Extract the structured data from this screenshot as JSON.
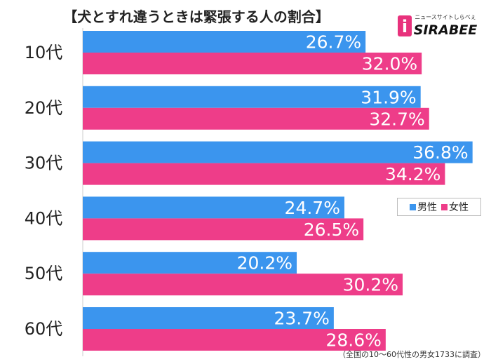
{
  "title": "【犬とすれ違うときは緊張する人の割合】",
  "logo": {
    "text": "SIRABEE",
    "tagline": "ニュースサイトしらべぇ"
  },
  "footnote": "（全国の10～60代性の男女1733に調査）",
  "chart_data": {
    "type": "bar",
    "orientation": "horizontal",
    "categories": [
      "10代",
      "20代",
      "30代",
      "40代",
      "50代",
      "60代"
    ],
    "series": [
      {
        "name": "男性",
        "color": "#3b95ee",
        "values": [
          26.7,
          31.9,
          36.8,
          24.7,
          20.2,
          23.7
        ]
      },
      {
        "name": "女性",
        "color": "#ee3d89",
        "values": [
          32.0,
          32.7,
          34.2,
          26.5,
          30.2,
          28.6
        ]
      }
    ],
    "value_suffix": "%",
    "xlim": [
      0,
      40
    ],
    "legend_position": "right"
  }
}
